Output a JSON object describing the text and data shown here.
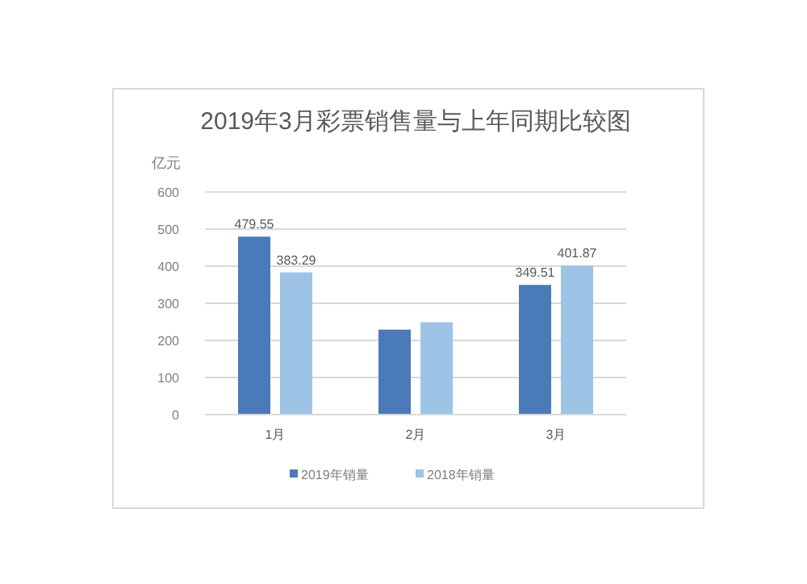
{
  "chart_data": {
    "type": "bar",
    "title": "2019年3月彩票销售量与上年同期比较图",
    "ylabel": "亿元",
    "categories": [
      "1月",
      "2月",
      "3月"
    ],
    "series": [
      {
        "name": "2019年销量",
        "color": "#4a7ab8",
        "values": [
          479.55,
          229,
          349.51
        ],
        "value_labels": [
          "479.55",
          null,
          "349.51"
        ]
      },
      {
        "name": "2018年销量",
        "color": "#9dc3e6",
        "values": [
          383.29,
          249,
          401.87
        ],
        "value_labels": [
          "383.29",
          null,
          "401.87"
        ]
      }
    ],
    "ylim": [
      0,
      600
    ],
    "yticks": [
      0,
      100,
      200,
      300,
      400,
      500,
      600
    ],
    "grid": "y",
    "legend": "bottom"
  }
}
